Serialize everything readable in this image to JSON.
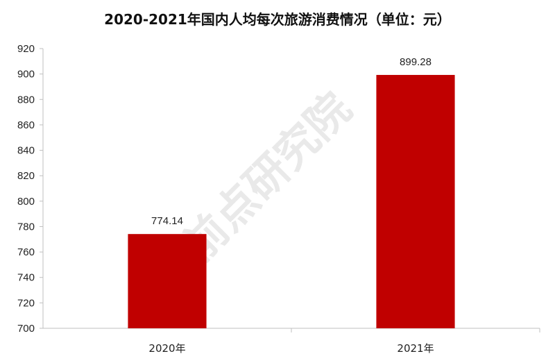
{
  "chart_data": {
    "type": "bar",
    "title": "2020-2021年国内人均每次旅游消费情况（单位：元）",
    "categories": [
      "2020年",
      "2021年"
    ],
    "values": [
      774.14,
      899.28
    ],
    "value_labels": [
      "774.14",
      "899.28"
    ],
    "ylim": [
      700,
      920
    ],
    "yticks": [
      700,
      720,
      740,
      760,
      780,
      800,
      820,
      840,
      860,
      880,
      900,
      920
    ],
    "bar_color": "#c00000",
    "grid": false,
    "legend": "none",
    "watermark": "前点研究院"
  }
}
